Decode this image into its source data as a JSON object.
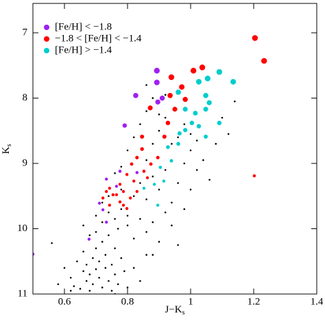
{
  "chart_data": {
    "type": "scatter",
    "x_label": {
      "main": "J−K",
      "sub": "s"
    },
    "y_label": {
      "main": "K",
      "sub": "s"
    },
    "xlim": [
      0.5,
      1.4
    ],
    "ylim": [
      11,
      6.55
    ],
    "xticks": [
      0.6,
      0.8,
      1,
      1.2,
      1.4
    ],
    "yticks": [
      7,
      8,
      9,
      10,
      11
    ],
    "legend": "top-left",
    "series": [
      {
        "color": "#000000",
        "x": [
          0.56,
          0.6,
          0.62,
          0.63,
          0.64,
          0.65,
          0.66,
          0.66,
          0.67,
          0.67,
          0.68,
          0.68,
          0.69,
          0.69,
          0.7,
          0.7,
          0.71,
          0.71,
          0.72,
          0.72,
          0.73,
          0.73,
          0.74,
          0.74,
          0.75,
          0.75,
          0.76,
          0.76,
          0.77,
          0.77,
          0.78,
          0.79,
          0.8,
          0.82,
          0.84,
          0.86,
          0.7,
          0.72,
          0.74,
          0.76,
          0.78,
          0.8,
          0.82,
          0.68,
          0.66,
          0.7,
          0.72,
          0.74,
          0.78,
          0.8,
          0.84,
          0.86,
          0.88,
          0.9,
          0.92,
          0.94,
          0.96,
          0.88,
          0.82,
          0.84,
          0.86,
          0.88,
          0.9,
          0.92,
          0.94,
          0.96,
          0.98,
          1.0,
          1.02,
          0.98,
          1.0,
          1.04,
          1.06,
          1.08,
          0.86,
          0.88,
          0.9,
          0.92,
          0.94,
          0.96,
          0.84,
          0.86,
          0.88,
          0.9,
          0.92,
          0.86,
          0.82,
          0.8,
          0.78,
          0.76,
          0.98,
          1.0,
          1.02,
          1.12,
          1.1,
          1.14,
          0.76,
          0.58,
          0.62
        ],
        "values": [
          10.22,
          10.6,
          10.75,
          10.88,
          10.5,
          10.92,
          10.35,
          10.65,
          10.8,
          10.55,
          10.7,
          10.95,
          10.45,
          10.85,
          10.62,
          10.3,
          10.75,
          10.5,
          10.9,
          10.2,
          10.6,
          10.4,
          10.8,
          10.1,
          10.55,
          10.95,
          10.3,
          10.7,
          10.85,
          10.0,
          10.45,
          10.65,
          10.9,
          10.6,
          10.8,
          10.4,
          10.05,
          9.9,
          9.75,
          9.85,
          9.7,
          9.95,
          10.15,
          10.1,
          9.95,
          9.8,
          9.6,
          9.5,
          9.4,
          9.8,
          9.85,
          10.05,
          9.9,
          10.2,
          9.75,
          9.95,
          10.25,
          10.4,
          9.5,
          9.3,
          9.55,
          9.2,
          9.4,
          9.1,
          9.6,
          9.3,
          9.7,
          9.4,
          9.1,
          9.0,
          8.8,
          8.95,
          9.25,
          8.7,
          8.95,
          8.7,
          8.5,
          8.3,
          8.7,
          8.6,
          8.4,
          8.2,
          8.0,
          8.25,
          7.95,
          7.8,
          8.6,
          8.8,
          9.05,
          9.15,
          8.4,
          8.55,
          8.65,
          8.55,
          8.3,
          8.05,
          11.0,
          10.85,
          10.95
        ]
      },
      {
        "name": "[Fe/H] < −1.8",
        "color": "#a020f0",
        "x": [
          0.893,
          0.893,
          0.826,
          0.896,
          0.791,
          0.733,
          0.765,
          0.711,
          0.722,
          0.733,
          0.678,
          0.5,
          0.83,
          0.776,
          0.91
        ],
        "values": [
          7.58,
          7.76,
          7.96,
          8.06,
          8.42,
          9.24,
          9.35,
          9.61,
          9.71,
          9.9,
          10.16,
          10.39,
          9.14,
          9.12,
          8.0
        ]
      },
      {
        "name": "−1.8 < [Fe/H] < −1.4",
        "color": "#ff0000",
        "x": [
          1.204,
          1.233,
          1.202,
          1.037,
          1.009,
          0.972,
          0.939,
          0.983,
          0.935,
          0.872,
          0.846,
          0.846,
          0.813,
          0.852,
          0.798,
          0.82,
          0.776,
          0.743,
          0.787,
          0.754,
          0.809,
          0.722,
          0.776,
          0.743,
          0.798,
          0.765,
          0.83,
          0.863,
          0.896,
          0.917,
          0.95,
          0.874,
          0.787,
          0.733,
          0.83,
          0.928
        ],
        "values": [
          7.08,
          7.43,
          9.19,
          7.53,
          7.58,
          7.83,
          7.68,
          8.02,
          7.96,
          8.15,
          8.59,
          8.78,
          9.01,
          9.12,
          9.17,
          9.27,
          9.32,
          9.38,
          9.43,
          9.48,
          9.53,
          9.53,
          9.59,
          9.64,
          9.69,
          9.48,
          9.43,
          9.22,
          8.91,
          8.59,
          8.17,
          9.01,
          9.64,
          9.43,
          8.91,
          8.38
        ]
      },
      {
        "name": "[Fe/H] > −1.4",
        "color": "#00cdcd",
        "x": [
          1.135,
          1.054,
          1.091,
          1.048,
          1.026,
          0.961,
          0.983,
          1.015,
          1.048,
          1.059,
          0.983,
          0.961,
          0.928,
          0.939,
          0.904,
          0.915,
          0.885,
          0.852,
          0.896,
          1.004,
          0.965,
          1.026,
          1.048,
          1.091
        ],
        "values": [
          7.75,
          7.7,
          7.6,
          7.96,
          7.75,
          7.91,
          8.17,
          8.23,
          8.17,
          8.07,
          8.49,
          8.7,
          8.75,
          8.96,
          9.06,
          9.27,
          9.32,
          9.38,
          9.64,
          8.38,
          8.54,
          8.43,
          8.59,
          8.38
        ]
      }
    ]
  }
}
